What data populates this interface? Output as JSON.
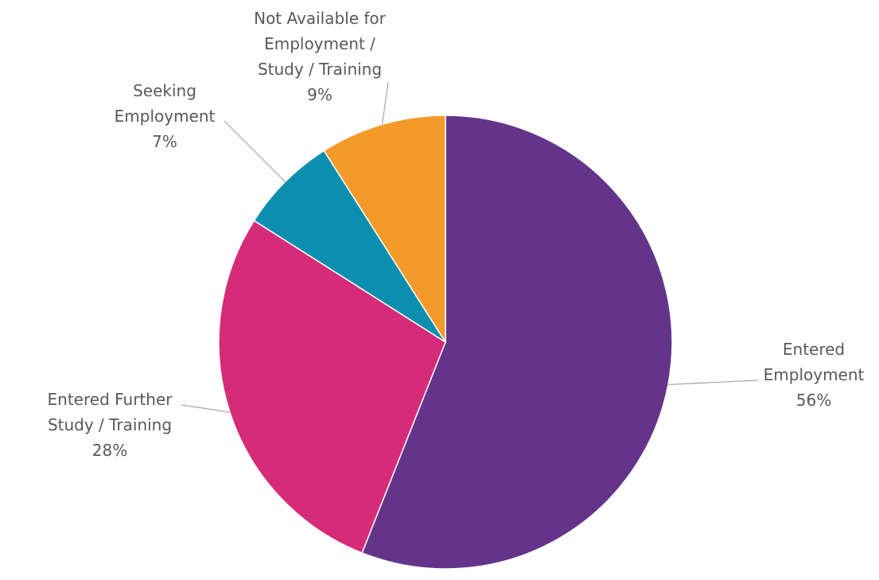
{
  "chart_data": {
    "type": "pie",
    "title": "",
    "start_angle_deg": 0,
    "direction": "clockwise",
    "legend": "none",
    "slices": [
      {
        "label_lines": [
          "Entered",
          "Employment"
        ],
        "value": 56,
        "value_label": "56%",
        "color": "#64348b"
      },
      {
        "label_lines": [
          "Entered Further",
          "Study / Training"
        ],
        "value": 28,
        "value_label": "28%",
        "color": "#d62b78"
      },
      {
        "label_lines": [
          "Seeking",
          "Employment"
        ],
        "value": 7,
        "value_label": "7%",
        "color": "#0c8fae"
      },
      {
        "label_lines": [
          "Not Available for",
          "Employment /",
          "Study / Training"
        ],
        "value": 9,
        "value_label": "9%",
        "color": "#f39a2b"
      }
    ]
  }
}
